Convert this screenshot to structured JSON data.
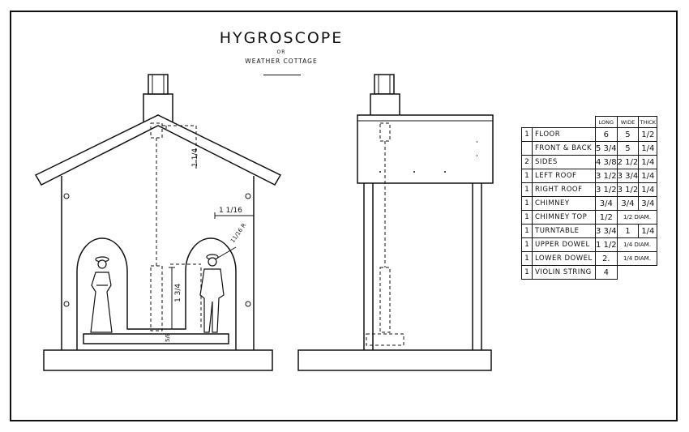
{
  "title": {
    "main": "HYGROSCOPE",
    "or": "OR",
    "subtitle": "WEATHER COTTAGE"
  },
  "dimensions": {
    "chimney_height": "1 1/4",
    "eave_offset": "1 1/16",
    "arch_radius": "11/16 R",
    "dowel_height": "1 3/4",
    "base_gap": "5/8"
  },
  "parts_table": {
    "headers": [
      "LONG",
      "WIDE",
      "THICK"
    ],
    "rows": [
      {
        "qty": "1",
        "name": "FLOOR",
        "long": "6",
        "wide": "5",
        "thick": "1/2"
      },
      {
        "qty": "",
        "name": "FRONT & BACK",
        "long": "5 3/4",
        "wide": "5",
        "thick": "1/4"
      },
      {
        "qty": "2",
        "name": "SIDES",
        "long": "4 3/8",
        "wide": "2 1/2",
        "thick": "1/4"
      },
      {
        "qty": "1",
        "name": "LEFT ROOF",
        "long": "3 1/2",
        "wide": "3 3/4",
        "thick": "1/4"
      },
      {
        "qty": "1",
        "name": "RIGHT ROOF",
        "long": "3 1/2",
        "wide": "3 1/2",
        "thick": "1/4"
      },
      {
        "qty": "1",
        "name": "CHIMNEY",
        "long": "3/4",
        "wide": "3/4",
        "thick": "3/4"
      },
      {
        "qty": "1",
        "name": "CHIMNEY TOP",
        "long": "1/2",
        "wide": "1/2 DIAM.",
        "thick": ""
      },
      {
        "qty": "1",
        "name": "TURNTABLE",
        "long": "3 3/4",
        "wide": "1",
        "thick": "1/4"
      },
      {
        "qty": "1",
        "name": "UPPER DOWEL",
        "long": "1 1/2",
        "wide": "1/4 DIAM.",
        "thick": ""
      },
      {
        "qty": "1",
        "name": "LOWER DOWEL",
        "long": "2.",
        "wide": "1/4 DIAM.",
        "thick": ""
      },
      {
        "qty": "1",
        "name": "VIOLIN STRING",
        "long": "4",
        "wide": "",
        "thick": ""
      }
    ]
  }
}
